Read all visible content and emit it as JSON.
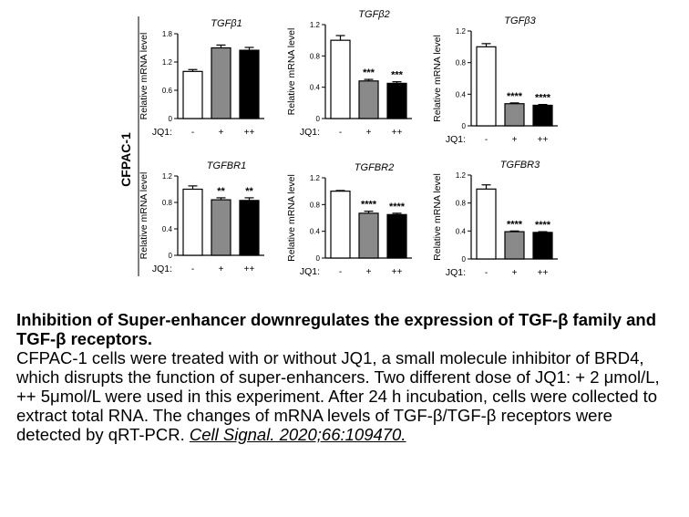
{
  "figure": {
    "side_label": "CFPAC-1",
    "colors": {
      "control": "#ffffff",
      "low": "#8a8a8a",
      "high": "#000000",
      "stroke": "#000000"
    }
  },
  "chart_data": [
    {
      "type": "bar",
      "title": "TGFβ1",
      "categories": [
        "-",
        "+",
        "++"
      ],
      "xlabel": "JQ1:",
      "ylabel": "Relative mRNA level",
      "ylim": [
        0,
        1.8
      ],
      "yticks": [
        "0",
        "0.6",
        "1.2",
        "1.8"
      ],
      "values": [
        1.0,
        1.5,
        1.45
      ],
      "errors": [
        0.04,
        0.06,
        0.06
      ],
      "annotations": [
        "",
        "",
        ""
      ]
    },
    {
      "type": "bar",
      "title": "TGFβ2",
      "categories": [
        "-",
        "+",
        "++"
      ],
      "xlabel": "JQ1:",
      "ylabel": "Relative mRNA level",
      "ylim": [
        0,
        1.2
      ],
      "yticks": [
        "0",
        "0.4",
        "0.8",
        "1.2"
      ],
      "values": [
        1.0,
        0.48,
        0.45
      ],
      "errors": [
        0.06,
        0.02,
        0.02
      ],
      "annotations": [
        "",
        "***",
        "***"
      ]
    },
    {
      "type": "bar",
      "title": "TGFβ3",
      "categories": [
        "-",
        "+",
        "++"
      ],
      "xlabel": "JQ1:",
      "ylabel": "Relative mRNA level",
      "ylim": [
        0,
        1.2
      ],
      "yticks": [
        "0",
        "0.4",
        "0.8",
        "1.2"
      ],
      "values": [
        1.0,
        0.28,
        0.26
      ],
      "errors": [
        0.04,
        0.01,
        0.01
      ],
      "annotations": [
        "",
        "****",
        "****"
      ]
    },
    {
      "type": "bar",
      "title": "TGFBR1",
      "categories": [
        "-",
        "+",
        "++"
      ],
      "xlabel": "JQ1:",
      "ylabel": "Relative mRNA level",
      "ylim": [
        0,
        1.2
      ],
      "yticks": [
        "0",
        "0.4",
        "0.8",
        "1.2"
      ],
      "values": [
        1.0,
        0.84,
        0.83
      ],
      "errors": [
        0.05,
        0.03,
        0.04
      ],
      "annotations": [
        "",
        "**",
        "**"
      ]
    },
    {
      "type": "bar",
      "title": "TGFBR2",
      "categories": [
        "-",
        "+",
        "++"
      ],
      "xlabel": "JQ1:",
      "ylabel": "Relative mRNA level",
      "ylim": [
        0,
        1.2
      ],
      "yticks": [
        "0",
        "0.4",
        "0.8",
        "1.2"
      ],
      "values": [
        1.0,
        0.67,
        0.65
      ],
      "errors": [
        0.01,
        0.03,
        0.02
      ],
      "annotations": [
        "",
        "****",
        "****"
      ]
    },
    {
      "type": "bar",
      "title": "TGFBR3",
      "categories": [
        "-",
        "+",
        "++"
      ],
      "xlabel": "JQ1:",
      "ylabel": "Relative mRNA level",
      "ylim": [
        0,
        1.2
      ],
      "yticks": [
        "0",
        "0.4",
        "0.8",
        "1.2"
      ],
      "values": [
        1.0,
        0.39,
        0.38
      ],
      "errors": [
        0.06,
        0.01,
        0.01
      ],
      "annotations": [
        "",
        "****",
        "****"
      ]
    }
  ],
  "caption": {
    "title": "Inhibition of Super-enhancer downregulates the expression of TGF-β family and TGF-β receptors.",
    "body": "CFPAC-1 cells were treated with or without JQ1, a small molecule inhibitor of BRD4, which disrupts the function of super-enhancers. Two different dose of JQ1: + 2 μmol/L, ++ 5μmol/L were used in this experiment. After 24 h incubation, cells were collected to extract total RNA. The changes of mRNA levels of TGF-β/TGF-β receptors were detected by qRT-PCR.",
    "citation": "Cell Signal. 2020;66:109470. "
  }
}
